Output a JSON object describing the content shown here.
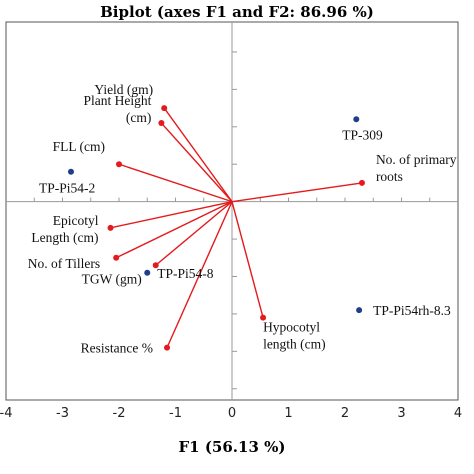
{
  "chart_data": {
    "type": "scatter",
    "title": "Biplot (axes F1 and F2: 86.96 %)",
    "xlabel": "F1 (56.13 %)",
    "ylabel": "",
    "xlim": [
      -4,
      4
    ],
    "ylim": [
      -2.65,
      2.4
    ],
    "xticks": [
      "-4",
      "-3",
      "-2",
      "-1",
      "0",
      "1",
      "2",
      "3",
      "4"
    ],
    "grid": false,
    "colors": {
      "variables": "#e41a1c",
      "observations": "#1f3d8a",
      "axes": "#9a9a9a",
      "frame": "#555555"
    },
    "variables": [
      {
        "label": [
          "Yield (gm)"
        ],
        "x": -1.2,
        "y": 1.25
      },
      {
        "label": [
          "Plant Height",
          "(cm)"
        ],
        "x": -1.25,
        "y": 1.05
      },
      {
        "label": [
          "FLL (cm)"
        ],
        "x": -2.0,
        "y": 0.5
      },
      {
        "label": [
          "No. of primary",
          "roots"
        ],
        "x": 2.3,
        "y": 0.25
      },
      {
        "label": [
          "Epicotyl",
          "Length (cm)"
        ],
        "x": -2.15,
        "y": -0.35
      },
      {
        "label": [
          "No. of Tillers"
        ],
        "x": -2.05,
        "y": -0.75
      },
      {
        "label": [
          "TGW (gm)"
        ],
        "x": -1.35,
        "y": -0.85
      },
      {
        "label": [
          "Resistance %"
        ],
        "x": -1.15,
        "y": -1.95
      },
      {
        "label": [
          "Hypocotyl",
          "length (cm)"
        ],
        "x": 0.55,
        "y": -1.55
      }
    ],
    "observations": [
      {
        "label": "TP-309",
        "x": 2.2,
        "y": 1.1
      },
      {
        "label": "TP-Pi54-2",
        "x": -2.85,
        "y": 0.4
      },
      {
        "label": "TP-Pi54-8",
        "x": -1.5,
        "y": -0.95
      },
      {
        "label": "TP-Pi54rh-8.3",
        "x": 2.25,
        "y": -1.45
      }
    ]
  }
}
